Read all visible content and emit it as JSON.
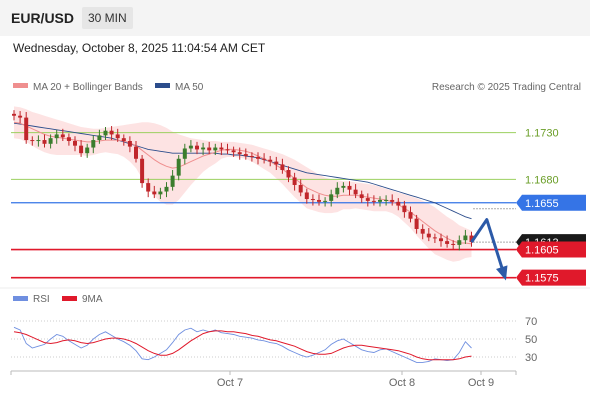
{
  "header": {
    "symbol": "EUR/USD",
    "timeframe": "30 MIN",
    "datetime": "Wednesday, October 8, 2025 11:04:54 AM CET"
  },
  "legend": {
    "ma20_label": "MA 20 + Bollinger Bands",
    "ma50_label": "MA 50",
    "credit": "Research © 2025 Trading Central",
    "rsi_label": "RSI",
    "rsi_ma_label": "9MA"
  },
  "colors": {
    "ma20": "#ef8f8f",
    "ma50": "#2c4d8c",
    "bollinger_fill": "#fde3e3",
    "candle_up": "#3b7d2d",
    "candle_down": "#c0262b",
    "pivot": "#3574e6",
    "support": "#e0192b",
    "resistance_line": "#9bd05f",
    "rsi": "#6f8fe0",
    "rsi_ma": "#e0192b"
  },
  "chart_data": [
    {
      "type": "candlestick",
      "title": "",
      "x_ticks": [
        "Oct 7",
        "Oct 8",
        "Oct 9"
      ],
      "ylim": [
        1.1565,
        1.1768
      ],
      "levels": [
        {
          "value": 1.173,
          "label": "1.1730",
          "kind": "resistance"
        },
        {
          "value": 1.168,
          "label": "1.1680",
          "kind": "resistance"
        },
        {
          "value": 1.1655,
          "label": "1.1655",
          "kind": "pivot"
        },
        {
          "value": 1.1605,
          "label": "1.1605",
          "kind": "support"
        },
        {
          "value": 1.1575,
          "label": "1.1575",
          "kind": "support"
        }
      ],
      "last_price": {
        "value": 1.1613,
        "label": "1.1613"
      },
      "close": [
        1.1748,
        1.1746,
        1.1722,
        1.1721,
        1.1722,
        1.1718,
        1.1724,
        1.1728,
        1.1725,
        1.1721,
        1.1716,
        1.1708,
        1.1714,
        1.1722,
        1.1727,
        1.1732,
        1.1728,
        1.1724,
        1.1721,
        1.1715,
        1.1702,
        1.1676,
        1.1667,
        1.1664,
        1.1667,
        1.1672,
        1.1684,
        1.1702,
        1.1713,
        1.1716,
        1.1712,
        1.1714,
        1.1711,
        1.1714,
        1.1712,
        1.1711,
        1.1709,
        1.1707,
        1.1705,
        1.1704,
        1.1702,
        1.1701,
        1.1699,
        1.1696,
        1.169,
        1.1682,
        1.1674,
        1.1666,
        1.1659,
        1.1658,
        1.1656,
        1.1657,
        1.1664,
        1.1671,
        1.1673,
        1.1669,
        1.1664,
        1.166,
        1.1657,
        1.1656,
        1.1658,
        1.1658,
        1.1656,
        1.1652,
        1.1645,
        1.1638,
        1.1627,
        1.1622,
        1.1618,
        1.1617,
        1.1614,
        1.1611,
        1.161,
        1.1615,
        1.162,
        1.1613
      ],
      "ma20": [
        1.1741,
        1.174,
        1.1737,
        1.1734,
        1.1731,
        1.1728,
        1.1726,
        1.1725,
        1.1724,
        1.1723,
        1.1722,
        1.1721,
        1.172,
        1.172,
        1.1721,
        1.1722,
        1.1722,
        1.1722,
        1.1721,
        1.1719,
        1.1716,
        1.1711,
        1.1706,
        1.1701,
        1.1697,
        1.1694,
        1.1692,
        1.1693,
        1.1696,
        1.1699,
        1.1702,
        1.1705,
        1.1707,
        1.1709,
        1.1711,
        1.1712,
        1.1712,
        1.1711,
        1.171,
        1.1708,
        1.1705,
        1.1702,
        1.1699,
        1.1695,
        1.1691,
        1.1686,
        1.1681,
        1.1676,
        1.1671,
        1.1668,
        1.1665,
        1.1663,
        1.1662,
        1.1662,
        1.1663,
        1.1663,
        1.1663,
        1.1662,
        1.1661,
        1.166,
        1.1659,
        1.1658,
        1.1656,
        1.1653,
        1.1649,
        1.1645,
        1.164,
        1.1635,
        1.163,
        1.1625,
        1.1621,
        1.1617,
        1.1614,
        1.1612,
        1.1612,
        1.1611
      ],
      "ma50": [
        1.174,
        1.1739,
        1.1738,
        1.1737,
        1.1736,
        1.1735,
        1.1734,
        1.1733,
        1.1732,
        1.1731,
        1.173,
        1.1729,
        1.1728,
        1.1727,
        1.1726,
        1.1725,
        1.1724,
        1.1722,
        1.172,
        1.1718,
        1.1716,
        1.1714,
        1.1712,
        1.1711,
        1.171,
        1.1709,
        1.1708,
        1.1708,
        1.1708,
        1.1708,
        1.1708,
        1.1708,
        1.1708,
        1.1708,
        1.1707,
        1.1707,
        1.1706,
        1.1706,
        1.1705,
        1.1704,
        1.1703,
        1.1701,
        1.1699,
        1.1697,
        1.1695,
        1.1693,
        1.1691,
        1.1689,
        1.1687,
        1.1686,
        1.1685,
        1.1684,
        1.1683,
        1.1682,
        1.1681,
        1.168,
        1.1679,
        1.1678,
        1.1677,
        1.1675,
        1.1673,
        1.1671,
        1.1669,
        1.1667,
        1.1665,
        1.1663,
        1.1661,
        1.1659,
        1.1657,
        1.1655,
        1.1652,
        1.1649,
        1.1646,
        1.1643,
        1.164,
        1.1638
      ],
      "band_upper": [
        1.1758,
        1.1757,
        1.1755,
        1.1752,
        1.175,
        1.1748,
        1.1746,
        1.1744,
        1.1742,
        1.174,
        1.1738,
        1.1736,
        1.1735,
        1.1734,
        1.1734,
        1.1735,
        1.1736,
        1.1737,
        1.1738,
        1.1739,
        1.174,
        1.1741,
        1.1741,
        1.174,
        1.1738,
        1.1735,
        1.1731,
        1.1728,
        1.1726,
        1.1724,
        1.1723,
        1.1722,
        1.1721,
        1.1721,
        1.172,
        1.172,
        1.172,
        1.1719,
        1.1718,
        1.1717,
        1.1715,
        1.1713,
        1.1711,
        1.1709,
        1.1707,
        1.1704,
        1.1701,
        1.1697,
        1.1693,
        1.1689,
        1.1685,
        1.1682,
        1.168,
        1.1679,
        1.1678,
        1.1678,
        1.1677,
        1.1676,
        1.1675,
        1.1674,
        1.1672,
        1.167,
        1.1668,
        1.1666,
        1.1664,
        1.1662,
        1.166,
        1.1657,
        1.1654,
        1.165,
        1.1645,
        1.164,
        1.1636,
        1.1631,
        1.1628,
        1.1625
      ],
      "band_lower": [
        1.1724,
        1.1723,
        1.172,
        1.1716,
        1.1712,
        1.1709,
        1.1707,
        1.1706,
        1.1706,
        1.1706,
        1.1706,
        1.1706,
        1.1705,
        1.1706,
        1.1708,
        1.1709,
        1.1708,
        1.1707,
        1.1704,
        1.1699,
        1.1692,
        1.1681,
        1.1671,
        1.1662,
        1.1656,
        1.1653,
        1.1653,
        1.1658,
        1.1666,
        1.1674,
        1.1681,
        1.1688,
        1.1693,
        1.1697,
        1.1702,
        1.1704,
        1.1704,
        1.1703,
        1.1702,
        1.1699,
        1.1695,
        1.1691,
        1.1687,
        1.1681,
        1.1675,
        1.1668,
        1.1661,
        1.1655,
        1.1649,
        1.1647,
        1.1645,
        1.1644,
        1.1644,
        1.1645,
        1.1648,
        1.1648,
        1.1649,
        1.1648,
        1.1647,
        1.1646,
        1.1646,
        1.1646,
        1.1644,
        1.164,
        1.1634,
        1.1628,
        1.162,
        1.1613,
        1.1606,
        1.16,
        1.1597,
        1.1594,
        1.1592,
        1.1593,
        1.1596,
        1.1597
      ],
      "projection": [
        {
          "bar": 75,
          "value": 1.1613
        },
        {
          "bar": 77.5,
          "value": 1.1637
        },
        {
          "bar": 80.5,
          "value": 1.1575
        }
      ]
    },
    {
      "type": "line",
      "title": "",
      "ylim": [
        20,
        80
      ],
      "y_ticks": [
        30,
        50,
        70
      ],
      "rsi": [
        63,
        60,
        45,
        40,
        42,
        44,
        50,
        55,
        53,
        48,
        44,
        40,
        43,
        50,
        55,
        58,
        54,
        50,
        47,
        43,
        37,
        28,
        27,
        30,
        34,
        38,
        46,
        55,
        60,
        62,
        58,
        60,
        58,
        60,
        57,
        56,
        55,
        53,
        52,
        51,
        49,
        48,
        46,
        45,
        42,
        38,
        35,
        32,
        30,
        32,
        35,
        38,
        44,
        48,
        50,
        46,
        42,
        38,
        36,
        35,
        38,
        39,
        36,
        33,
        30,
        27,
        24,
        24,
        25,
        28,
        27,
        26,
        27,
        35,
        47,
        40
      ],
      "rsi_ma": [
        58,
        57,
        55,
        52,
        49,
        46,
        45,
        46,
        48,
        49,
        48,
        46,
        45,
        46,
        48,
        50,
        51,
        51,
        50,
        48,
        45,
        41,
        37,
        34,
        32,
        32,
        34,
        38,
        43,
        48,
        52,
        56,
        58,
        59,
        59,
        58,
        58,
        57,
        56,
        54,
        53,
        51,
        49,
        48,
        46,
        44,
        42,
        39,
        36,
        34,
        33,
        33,
        34,
        37,
        40,
        42,
        43,
        43,
        42,
        41,
        40,
        39,
        38,
        37,
        35,
        33,
        30,
        28,
        27,
        27,
        27,
        27,
        27,
        28,
        30,
        31
      ]
    }
  ]
}
